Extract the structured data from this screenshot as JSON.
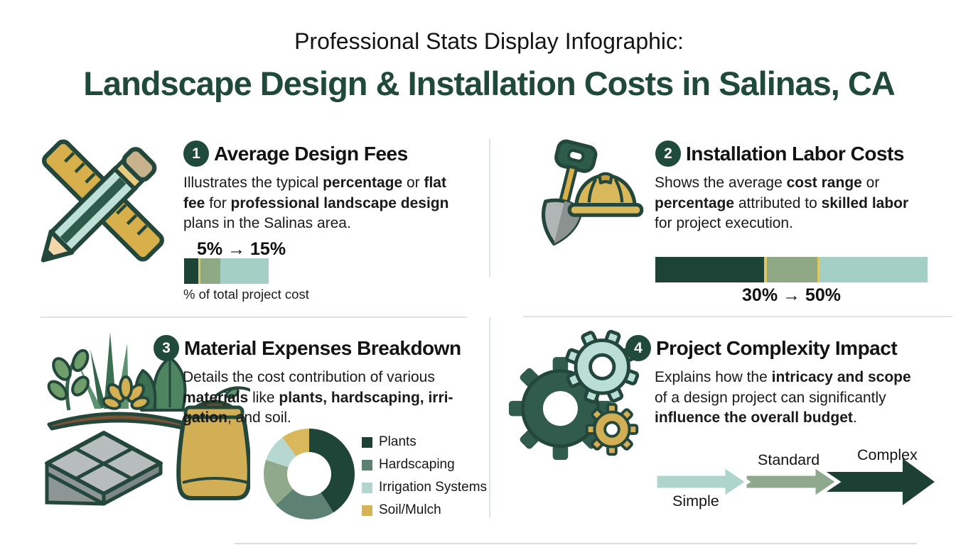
{
  "header": {
    "subtitle": "Professional Stats Display Infographic:",
    "title": "Landscape Design & Installation Costs in Salinas, CA"
  },
  "colors": {
    "title_green": "#1f4a3b",
    "badge_green": "#1f4a3c",
    "bar_dark": "#1d4336",
    "bar_sage": "#90a985",
    "bar_teal": "#a3cfc4",
    "bar_gold_line": "#ddc766",
    "divider": "#dde3e2"
  },
  "sections": [
    {
      "number": "1",
      "icon": "ruler-pencil",
      "title": "Average Design Fees",
      "description": [
        {
          "t": "Illustrates the typical "
        },
        {
          "t": "percentage",
          "b": true
        },
        {
          "t": " or "
        },
        {
          "t": "flat",
          "b": true
        },
        {
          "br": true
        },
        {
          "t": "fee",
          "b": true
        },
        {
          "t": " for "
        },
        {
          "t": "professional landscape design",
          "b": true
        },
        {
          "br": true
        },
        {
          "t": "plans in the Salinas area."
        }
      ],
      "stat": "5% → 15%",
      "caption": "% of total project cost",
      "bar": {
        "segments": [
          {
            "color": "#1d4336",
            "width": "17%"
          },
          {
            "color": "#ddc766",
            "width": "2.5%"
          },
          {
            "color": "#90a985",
            "width": "23.5%"
          },
          {
            "color": "#a3cfc4",
            "width": "57%"
          }
        ]
      }
    },
    {
      "number": "2",
      "icon": "shovel-hardhat",
      "title": "Installation Labor Costs",
      "description": [
        {
          "t": "Shows the average "
        },
        {
          "t": "cost range",
          "b": true
        },
        {
          "t": " or"
        },
        {
          "br": true
        },
        {
          "t": "percentage",
          "b": true
        },
        {
          "t": " attributed to "
        },
        {
          "t": "skilled labor",
          "b": true
        },
        {
          "br": true
        },
        {
          "t": "for project execution."
        }
      ],
      "stat": "30% → 50%",
      "bar": {
        "segments": [
          {
            "color": "#1d4336",
            "width": "40%"
          },
          {
            "color": "#ddc766",
            "width": "1%"
          },
          {
            "color": "#90a985",
            "width": "18.5%"
          },
          {
            "color": "#ddc766",
            "width": "0.8%"
          },
          {
            "color": "#a3cfc4",
            "width": "39.7%"
          }
        ]
      }
    },
    {
      "number": "3",
      "icon": "plants-materials",
      "title": "Material Expenses Breakdown",
      "description": [
        {
          "t": "Details the cost contribution of various"
        },
        {
          "br": true
        },
        {
          "t": "materials",
          "b": true
        },
        {
          "t": " like "
        },
        {
          "t": "plants, hardscaping, irri-",
          "b": true
        },
        {
          "br": true
        },
        {
          "t": "gation",
          "b": true
        },
        {
          "t": ", and soil."
        }
      ],
      "donut": {
        "segments": [
          {
            "label": "Plants",
            "color": "#1e4537",
            "pct": 41
          },
          {
            "label": "Hardscaping",
            "color": "#5d8273",
            "pct": 22
          },
          {
            "label": "Hardscaping (light shade)",
            "color": "#8fa98a",
            "pct": 17
          },
          {
            "label": "Irrigation Systems",
            "color": "#b6d8d0",
            "pct": 10
          },
          {
            "label": "Soil/Mulch",
            "color": "#d9b85c",
            "pct": 10
          }
        ]
      },
      "legend": [
        {
          "label": "Plants",
          "color": "#1d4034"
        },
        {
          "label": "Hardscaping",
          "color": "#5d8170"
        },
        {
          "label": "Irrigation Systems",
          "color": "#b2d6cd"
        },
        {
          "label": "Soil/Mulch",
          "color": "#d6b453"
        }
      ]
    },
    {
      "number": "4",
      "icon": "gears",
      "title": "Project Complexity Impact",
      "description": [
        {
          "t": "Explains how the "
        },
        {
          "t": "intricacy and scope",
          "b": true
        },
        {
          "br": true
        },
        {
          "t": "of a design project can significantly"
        },
        {
          "br": true
        },
        {
          "t": "influence the overall budget",
          "b": true
        },
        {
          "t": "."
        }
      ],
      "levels": [
        {
          "label": "Simple",
          "color": "#aed5cb",
          "label_position": "below"
        },
        {
          "label": "Standard",
          "color": "#8fa98f",
          "label_position": "above"
        },
        {
          "label": "Complex",
          "color": "#1d4034",
          "label_position": "above"
        }
      ]
    }
  ],
  "chart_data": [
    {
      "type": "bar",
      "title": "Average Design Fees",
      "range_pct": [
        5,
        15
      ],
      "stat_label": "5% → 15%",
      "caption": "% of total project cost",
      "segments_pct": [
        17,
        2.5,
        23.5,
        57
      ]
    },
    {
      "type": "bar",
      "title": "Installation Labor Costs",
      "range_pct": [
        30,
        50
      ],
      "stat_label": "30% → 50%",
      "segments_pct": [
        40,
        1,
        18.5,
        0.8,
        39.7
      ]
    },
    {
      "type": "pie",
      "title": "Material Expenses Breakdown",
      "labels": [
        "Plants",
        "Hardscaping",
        "Hardscaping (light shade)",
        "Irrigation Systems",
        "Soil/Mulch"
      ],
      "values": [
        41,
        22,
        17,
        10,
        10
      ],
      "legend": [
        "Plants",
        "Hardscaping",
        "Irrigation Systems",
        "Soil/Mulch"
      ],
      "donut": true
    },
    {
      "type": "diagram",
      "title": "Project Complexity Impact",
      "stages": [
        "Simple",
        "Standard",
        "Complex"
      ]
    }
  ]
}
